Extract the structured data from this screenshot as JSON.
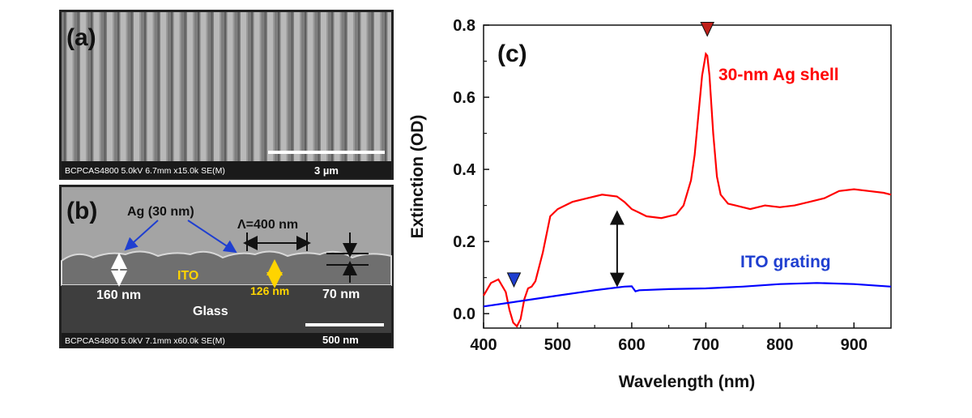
{
  "panels": {
    "a": {
      "letter": "(a)",
      "banner_text": "BCPCAS4800 5.0kV 6.7mm x15.0k SE(M)",
      "scale_label": "3 µm"
    },
    "b": {
      "letter": "(b)",
      "banner_text": "BCPCAS4800 5.0kV 7.1mm x60.0k SE(M)",
      "scale_label": "500 nm",
      "labels": {
        "ag": "Ag (30 nm)",
        "period": "Λ=400 nm",
        "ito": "ITO",
        "h160": "160 nm",
        "h126": "126 nm",
        "h70": "70 nm",
        "glass": "Glass"
      }
    },
    "c": {
      "letter": "(c)"
    }
  },
  "chart_data": {
    "type": "line",
    "xlabel": "Wavelength (nm)",
    "ylabel": "Extinction (OD)",
    "xlim": [
      400,
      950
    ],
    "ylim": [
      -0.04,
      0.8
    ],
    "x_ticks": [
      "400",
      "500",
      "600",
      "700",
      "800",
      "900"
    ],
    "y_ticks": [
      "0.0",
      "0.2",
      "0.4",
      "0.6",
      "0.8"
    ],
    "grid": false,
    "series": [
      {
        "name": "30-nm Ag shell",
        "color": "#ff0000",
        "x": [
          400,
          410,
          420,
          430,
          435,
          440,
          445,
          450,
          455,
          460,
          465,
          470,
          480,
          490,
          500,
          520,
          540,
          560,
          580,
          590,
          600,
          610,
          620,
          640,
          660,
          670,
          680,
          685,
          690,
          695,
          700,
          702,
          705,
          710,
          715,
          720,
          730,
          740,
          760,
          780,
          800,
          820,
          840,
          860,
          880,
          900,
          920,
          940,
          950
        ],
        "y": [
          0.05,
          0.085,
          0.095,
          0.06,
          0.01,
          -0.025,
          -0.035,
          -0.015,
          0.04,
          0.07,
          0.075,
          0.09,
          0.17,
          0.27,
          0.29,
          0.31,
          0.32,
          0.33,
          0.325,
          0.31,
          0.29,
          0.28,
          0.27,
          0.265,
          0.275,
          0.3,
          0.37,
          0.44,
          0.55,
          0.66,
          0.72,
          0.715,
          0.66,
          0.5,
          0.38,
          0.33,
          0.305,
          0.3,
          0.29,
          0.3,
          0.295,
          0.3,
          0.31,
          0.32,
          0.34,
          0.345,
          0.34,
          0.335,
          0.33
        ]
      },
      {
        "name": "ITO grating",
        "color": "#0000ff",
        "x": [
          400,
          450,
          500,
          550,
          590,
          600,
          605,
          610,
          650,
          700,
          750,
          800,
          850,
          900,
          950
        ],
        "y": [
          0.02,
          0.035,
          0.05,
          0.065,
          0.075,
          0.076,
          0.062,
          0.065,
          0.068,
          0.07,
          0.075,
          0.082,
          0.085,
          0.082,
          0.075
        ]
      }
    ],
    "annotations": {
      "red_marker": {
        "x": 702,
        "y": 0.79,
        "color": "#c0201a"
      },
      "blue_marker": {
        "x": 441,
        "y": 0.095,
        "color": "#1f3fd0"
      },
      "double_arrow": {
        "x": 600,
        "y1": 0.08,
        "y2": 0.28
      }
    }
  }
}
